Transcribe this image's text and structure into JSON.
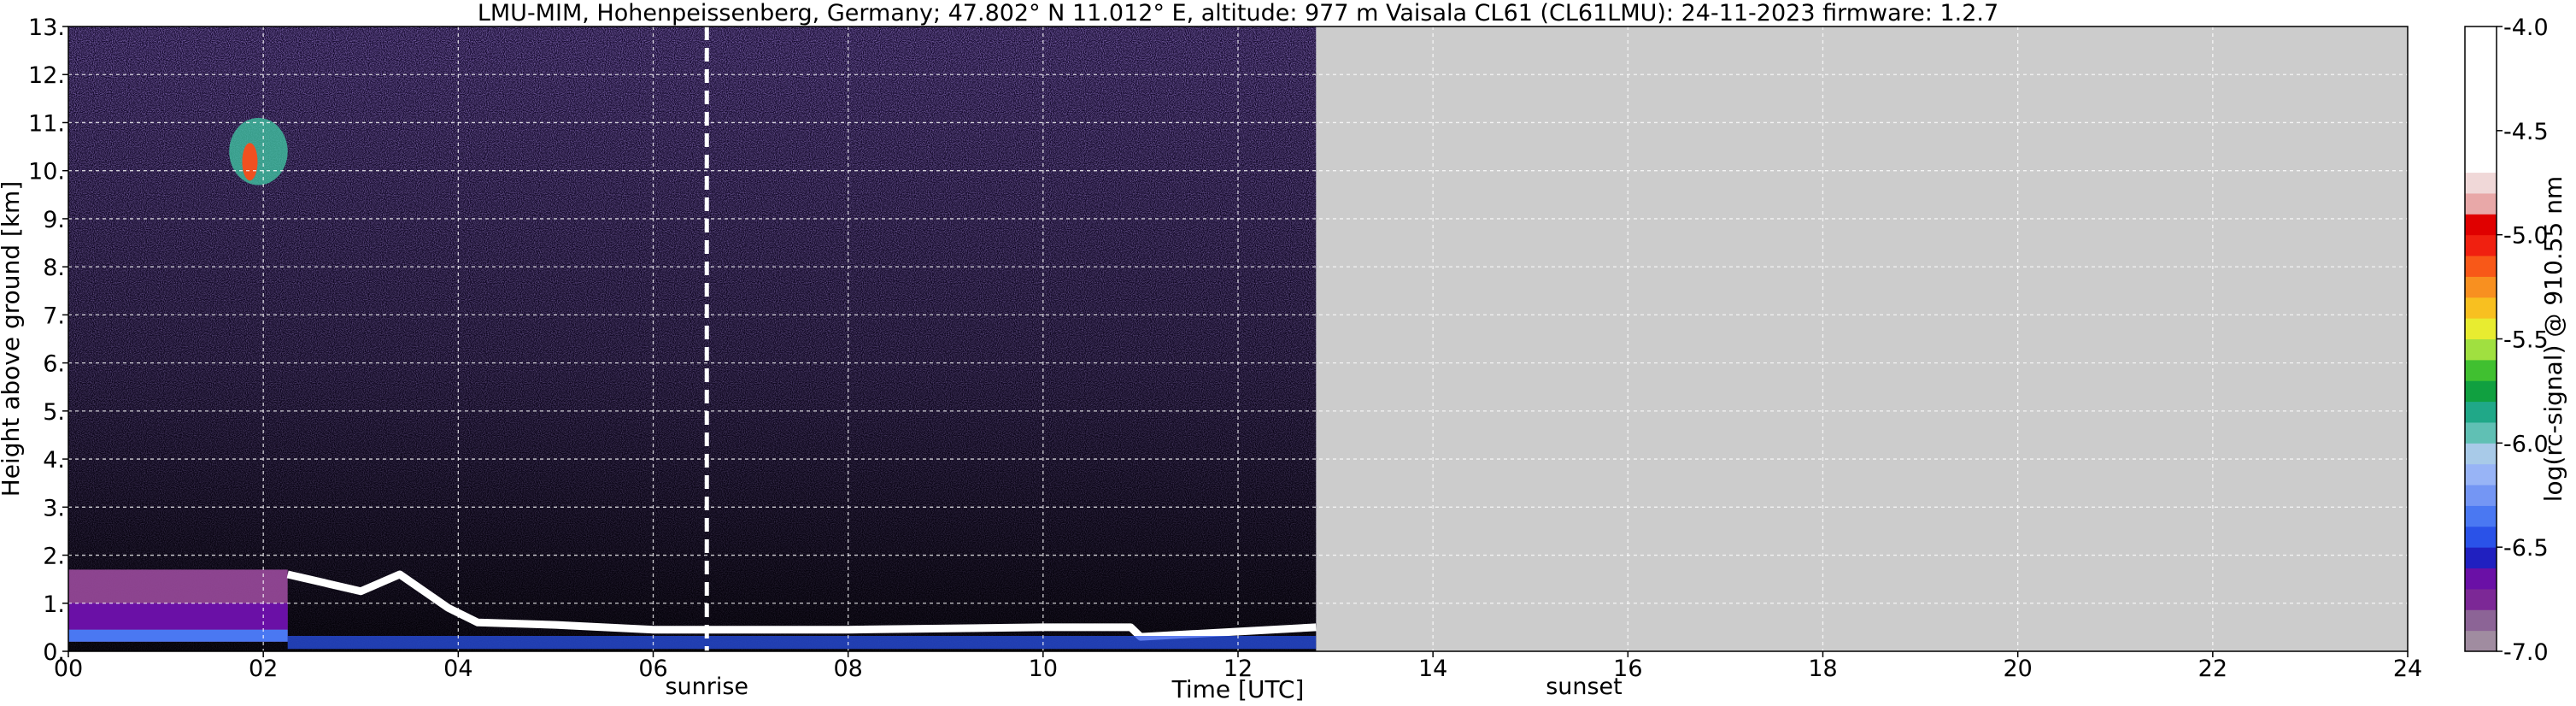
{
  "chart_data": {
    "type": "heatmap",
    "title": "LMU-MIM, Hohenpeissenberg, Germany; 47.802° N 11.012° E, altitude: 977 m    Vaisala CL61 (CL61LMU): 24-11-2023    firmware: 1.2.7",
    "xlabel": "Time [UTC]",
    "ylabel": "Height above ground [km]",
    "colorbar_label": "log(rc-signal) @ 910.55 nm",
    "xlim": [
      0,
      24
    ],
    "ylim": [
      0,
      13
    ],
    "x_ticks": [
      0,
      2,
      4,
      6,
      8,
      10,
      12,
      14,
      16,
      18,
      20,
      22,
      24
    ],
    "x_tick_labels": [
      "00",
      "02",
      "04",
      "06",
      "08",
      "10",
      "12",
      "14",
      "16",
      "18",
      "20",
      "22",
      "24"
    ],
    "y_ticks": [
      0,
      1,
      2,
      3,
      4,
      5,
      6,
      7,
      8,
      9,
      10,
      11,
      12,
      13
    ],
    "y_tick_labels": [
      "0.",
      "1.",
      "2.",
      "3.",
      "4.",
      "5.",
      "6.",
      "7.",
      "8.",
      "9.",
      "10.",
      "11.",
      "12.",
      "13."
    ],
    "colorbar_range": [
      -7.0,
      -4.0
    ],
    "colorbar_ticks": [
      -7.0,
      -6.5,
      -6.0,
      -5.5,
      -5.0,
      -4.5,
      -4.0
    ],
    "colorbar_tick_labels": [
      "-7.0",
      "-6.5",
      "-6.0",
      "-5.5",
      "-5.0",
      "-4.5",
      "-4.0"
    ],
    "colorbar_colors": [
      "#a08ca0",
      "#8c6496",
      "#7c2896",
      "#6a10a6",
      "#2020c0",
      "#2a52e8",
      "#4a78f2",
      "#7496f4",
      "#98b4f6",
      "#a8cae8",
      "#60c0b4",
      "#20a888",
      "#10a040",
      "#40c030",
      "#a0e040",
      "#e8ec30",
      "#f8c020",
      "#f89020",
      "#f85818",
      "#f02010",
      "#e00000",
      "#e8a8a8",
      "#f0d8d8",
      "#ffffff"
    ],
    "data_coverage_end_hour": 12.8,
    "missing_data_color": "#cccccc",
    "grid": true,
    "annotations": [
      {
        "text": "sunrise",
        "x": 6.55,
        "marker": "dashed vertical line"
      },
      {
        "text": "sunset",
        "x": 15.55
      }
    ],
    "features": [
      {
        "name": "residual-layer",
        "x": [
          0,
          2.25
        ],
        "y": [
          0.2,
          1.7
        ]
      },
      {
        "name": "cirrus-patch",
        "x": [
          1.65,
          2.25
        ],
        "y": [
          9.7,
          11.1
        ]
      },
      {
        "name": "low-cloud-top",
        "x": [
          2.25,
          12.8
        ],
        "y": [
          0.3,
          1.6
        ]
      }
    ]
  }
}
